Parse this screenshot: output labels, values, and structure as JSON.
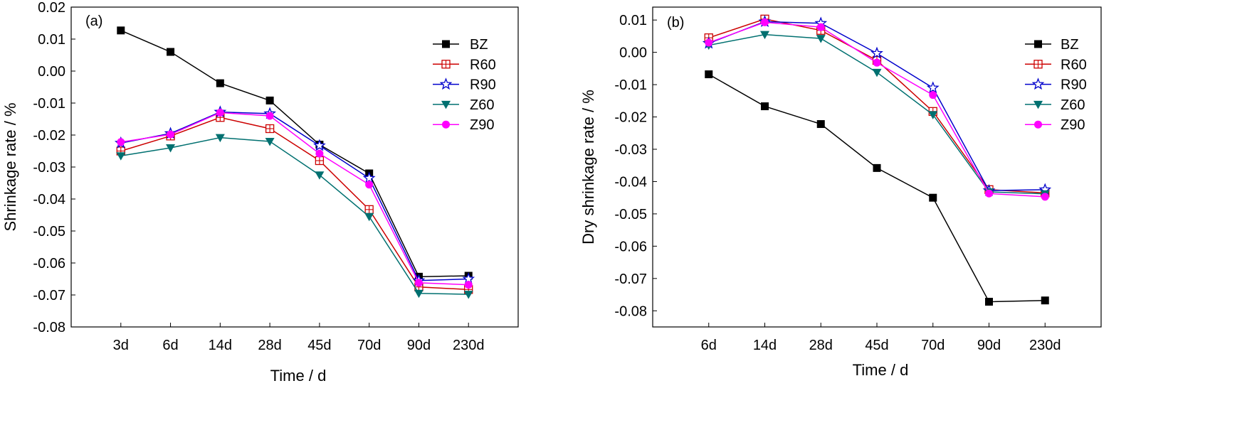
{
  "chart_data": [
    {
      "type": "line",
      "panel_label": "(a)",
      "xlabel": "Time / d",
      "ylabel": "Shrinkage rate / %",
      "categories": [
        "3d",
        "6d",
        "14d",
        "28d",
        "45d",
        "70d",
        "90d",
        "230d"
      ],
      "ylim": [
        -0.08,
        0.02
      ],
      "yticks": [
        0.02,
        0.01,
        0.0,
        -0.01,
        -0.02,
        -0.03,
        -0.04,
        -0.05,
        -0.06,
        -0.07,
        -0.08
      ],
      "ytick_labels": [
        "0.02",
        "0.01",
        "0.00",
        "-0.01",
        "-0.02",
        "-0.03",
        "-0.04",
        "-0.05",
        "-0.06",
        "-0.07",
        "-0.08"
      ],
      "legend_position": "top-right",
      "grid": false,
      "series": [
        {
          "name": "BZ",
          "color": "#000000",
          "marker": "square",
          "values": [
            0.0127,
            0.006,
            -0.0038,
            -0.0092,
            -0.023,
            -0.032,
            -0.0643,
            -0.064
          ]
        },
        {
          "name": "R60",
          "color": "#cc0000",
          "marker": "square-cross",
          "values": [
            -0.025,
            -0.0203,
            -0.0145,
            -0.018,
            -0.028,
            -0.0433,
            -0.0675,
            -0.0683
          ]
        },
        {
          "name": "R90",
          "color": "#0000cc",
          "marker": "star",
          "values": [
            -0.0225,
            -0.0195,
            -0.0128,
            -0.0133,
            -0.0233,
            -0.0335,
            -0.0655,
            -0.065
          ]
        },
        {
          "name": "Z60",
          "color": "#007070",
          "marker": "triangle-down",
          "values": [
            -0.0265,
            -0.024,
            -0.0208,
            -0.022,
            -0.0325,
            -0.0455,
            -0.0695,
            -0.0698
          ]
        },
        {
          "name": "Z90",
          "color": "#ff00ff",
          "marker": "circle",
          "values": [
            -0.0222,
            -0.0198,
            -0.013,
            -0.014,
            -0.0258,
            -0.0355,
            -0.0662,
            -0.0668
          ]
        }
      ]
    },
    {
      "type": "line",
      "panel_label": "(b)",
      "xlabel": "Time / d",
      "ylabel": "Dry shrinkage rate / %",
      "categories": [
        "6d",
        "14d",
        "28d",
        "45d",
        "70d",
        "90d",
        "230d"
      ],
      "ylim": [
        -0.085,
        0.014
      ],
      "yticks": [
        0.01,
        0.0,
        -0.01,
        -0.02,
        -0.03,
        -0.04,
        -0.05,
        -0.06,
        -0.07,
        -0.08
      ],
      "ytick_labels": [
        "0.01",
        "0.00",
        "-0.01",
        "-0.02",
        "-0.03",
        "-0.04",
        "-0.05",
        "-0.06",
        "-0.07",
        "-0.08"
      ],
      "legend_position": "top-right",
      "grid": false,
      "series": [
        {
          "name": "BZ",
          "color": "#000000",
          "marker": "square",
          "values": [
            -0.0068,
            -0.0167,
            -0.0222,
            -0.0358,
            -0.045,
            -0.0772,
            -0.0768
          ]
        },
        {
          "name": "R60",
          "color": "#cc0000",
          "marker": "square-cross",
          "values": [
            0.0045,
            0.0103,
            0.0068,
            -0.0025,
            -0.0183,
            -0.0425,
            -0.0435
          ]
        },
        {
          "name": "R90",
          "color": "#0000cc",
          "marker": "star",
          "values": [
            0.0028,
            0.0095,
            0.009,
            -0.0003,
            -0.011,
            -0.0428,
            -0.0425
          ]
        },
        {
          "name": "Z60",
          "color": "#007070",
          "marker": "triangle-down",
          "values": [
            0.0022,
            0.0055,
            0.0043,
            -0.0062,
            -0.0193,
            -0.0432,
            -0.0438
          ]
        },
        {
          "name": "Z90",
          "color": "#ff00ff",
          "marker": "circle",
          "values": [
            0.003,
            0.0093,
            0.0078,
            -0.0032,
            -0.0132,
            -0.0437,
            -0.0447
          ]
        }
      ]
    }
  ]
}
